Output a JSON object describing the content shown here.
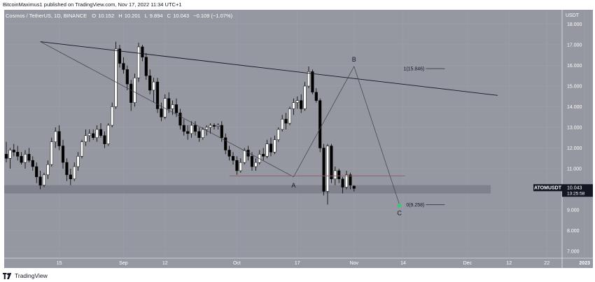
{
  "header": {
    "publish_line": "BitcoinMaximus1 published on TradingView.com, Nov 17, 2022 11:34 UTC+1"
  },
  "legend": {
    "symbol_line": "Cosmos / TetherUS, 1D, BINANCE",
    "o_label": "O",
    "o_value": "10.152",
    "h_label": "H",
    "h_value": "10.201",
    "l_label": "L",
    "l_value": "9.894",
    "c_label": "C",
    "c_value": "10.043",
    "change": "−0.109 (−1.07%)"
  },
  "footer": {
    "brand": "TradingView",
    "logo_icon": "tradingview-logo-icon"
  },
  "price_tag": {
    "symbol": "ATOMUSDT",
    "price": "10.043",
    "countdown": "13:25:58"
  },
  "colors": {
    "plot_bg": "#9598a1",
    "up_candle": "#ffffff",
    "down_candle": "#000000",
    "support_zone": "#7b7e88",
    "red_line": "#f23645",
    "green_dot": "#2ecc71"
  },
  "chart_data": {
    "type": "candlestick",
    "title": "Cosmos / TetherUS, 1D, BINANCE",
    "quote_unit": "USDT",
    "ylim": [
      6.8,
      18.4
    ],
    "y_ticks": [
      "18.000",
      "17.000",
      "16.000",
      "15.000",
      "14.000",
      "13.000",
      "12.000",
      "11.000",
      "9.000",
      "8.000",
      "7.000"
    ],
    "x_ticks": [
      "15",
      "Sep",
      "12",
      "Oct",
      "17",
      "Nov",
      "14",
      "Dec",
      "12",
      "22",
      "2023"
    ],
    "x_tick_days": [
      14,
      31,
      42,
      61,
      77,
      92,
      105,
      122,
      133,
      143,
      153
    ],
    "start_date": "Aug 2022",
    "candles": [
      {
        "o": 11.7,
        "h": 12.3,
        "l": 11.3,
        "c": 11.5
      },
      {
        "o": 11.5,
        "h": 12.0,
        "l": 11.0,
        "c": 11.9
      },
      {
        "o": 11.9,
        "h": 12.2,
        "l": 11.6,
        "c": 11.8
      },
      {
        "o": 11.8,
        "h": 12.1,
        "l": 11.4,
        "c": 11.6
      },
      {
        "o": 11.6,
        "h": 11.8,
        "l": 11.2,
        "c": 11.3
      },
      {
        "o": 11.3,
        "h": 11.9,
        "l": 11.0,
        "c": 11.7
      },
      {
        "o": 11.7,
        "h": 12.0,
        "l": 11.3,
        "c": 11.4
      },
      {
        "o": 11.4,
        "h": 11.6,
        "l": 10.9,
        "c": 11.1
      },
      {
        "o": 11.1,
        "h": 11.3,
        "l": 10.3,
        "c": 10.6
      },
      {
        "o": 10.6,
        "h": 10.9,
        "l": 10.0,
        "c": 10.2
      },
      {
        "o": 10.2,
        "h": 10.8,
        "l": 10.1,
        "c": 10.7
      },
      {
        "o": 10.7,
        "h": 11.4,
        "l": 10.5,
        "c": 11.2
      },
      {
        "o": 11.2,
        "h": 12.5,
        "l": 11.1,
        "c": 12.3
      },
      {
        "o": 12.3,
        "h": 13.0,
        "l": 12.0,
        "c": 12.8
      },
      {
        "o": 12.8,
        "h": 13.1,
        "l": 11.9,
        "c": 12.1
      },
      {
        "o": 12.1,
        "h": 12.4,
        "l": 11.0,
        "c": 11.3
      },
      {
        "o": 11.3,
        "h": 11.5,
        "l": 10.4,
        "c": 10.7
      },
      {
        "o": 10.7,
        "h": 11.0,
        "l": 10.2,
        "c": 10.5
      },
      {
        "o": 10.5,
        "h": 11.3,
        "l": 10.4,
        "c": 11.1
      },
      {
        "o": 11.1,
        "h": 11.8,
        "l": 10.9,
        "c": 11.6
      },
      {
        "o": 11.6,
        "h": 12.4,
        "l": 11.5,
        "c": 12.3
      },
      {
        "o": 12.3,
        "h": 12.9,
        "l": 12.1,
        "c": 12.6
      },
      {
        "o": 12.6,
        "h": 12.9,
        "l": 12.3,
        "c": 12.7
      },
      {
        "o": 12.7,
        "h": 12.9,
        "l": 12.4,
        "c": 12.5
      },
      {
        "o": 12.5,
        "h": 13.1,
        "l": 12.3,
        "c": 12.9
      },
      {
        "o": 12.9,
        "h": 13.2,
        "l": 12.5,
        "c": 12.6
      },
      {
        "o": 12.6,
        "h": 12.8,
        "l": 12.0,
        "c": 12.2
      },
      {
        "o": 12.2,
        "h": 13.2,
        "l": 12.1,
        "c": 13.1
      },
      {
        "o": 13.1,
        "h": 14.2,
        "l": 13.0,
        "c": 14.0
      },
      {
        "o": 14.0,
        "h": 17.15,
        "l": 13.9,
        "c": 16.8
      },
      {
        "o": 16.8,
        "h": 17.0,
        "l": 15.9,
        "c": 16.1
      },
      {
        "o": 16.1,
        "h": 16.4,
        "l": 15.6,
        "c": 15.8
      },
      {
        "o": 15.8,
        "h": 16.0,
        "l": 14.8,
        "c": 15.1
      },
      {
        "o": 15.1,
        "h": 15.3,
        "l": 13.8,
        "c": 14.2
      },
      {
        "o": 14.2,
        "h": 15.6,
        "l": 14.0,
        "c": 15.4
      },
      {
        "o": 15.4,
        "h": 17.1,
        "l": 15.2,
        "c": 16.9
      },
      {
        "o": 16.9,
        "h": 17.0,
        "l": 16.2,
        "c": 16.4
      },
      {
        "o": 16.4,
        "h": 16.6,
        "l": 15.3,
        "c": 15.5
      },
      {
        "o": 15.5,
        "h": 15.8,
        "l": 14.6,
        "c": 14.8
      },
      {
        "o": 14.8,
        "h": 15.4,
        "l": 14.2,
        "c": 15.2
      },
      {
        "o": 15.2,
        "h": 15.4,
        "l": 13.7,
        "c": 13.9
      },
      {
        "o": 13.9,
        "h": 14.2,
        "l": 13.3,
        "c": 13.5
      },
      {
        "o": 13.5,
        "h": 14.6,
        "l": 13.4,
        "c": 14.4
      },
      {
        "o": 14.4,
        "h": 14.7,
        "l": 13.7,
        "c": 13.9
      },
      {
        "o": 13.9,
        "h": 14.3,
        "l": 13.6,
        "c": 14.1
      },
      {
        "o": 14.1,
        "h": 14.4,
        "l": 13.5,
        "c": 13.7
      },
      {
        "o": 13.7,
        "h": 13.9,
        "l": 12.9,
        "c": 13.1
      },
      {
        "o": 13.1,
        "h": 13.4,
        "l": 12.6,
        "c": 12.8
      },
      {
        "o": 12.8,
        "h": 13.1,
        "l": 12.4,
        "c": 12.7
      },
      {
        "o": 12.7,
        "h": 13.3,
        "l": 12.5,
        "c": 13.1
      },
      {
        "o": 13.1,
        "h": 13.3,
        "l": 12.6,
        "c": 12.8
      },
      {
        "o": 12.8,
        "h": 13.0,
        "l": 12.3,
        "c": 12.5
      },
      {
        "o": 12.5,
        "h": 13.0,
        "l": 12.4,
        "c": 12.9
      },
      {
        "o": 12.9,
        "h": 13.1,
        "l": 12.6,
        "c": 13.0
      },
      {
        "o": 13.0,
        "h": 13.2,
        "l": 12.7,
        "c": 13.1
      },
      {
        "o": 13.1,
        "h": 13.2,
        "l": 12.9,
        "c": 13.05
      },
      {
        "o": 13.05,
        "h": 13.2,
        "l": 12.9,
        "c": 13.1
      },
      {
        "o": 13.1,
        "h": 13.3,
        "l": 12.3,
        "c": 12.5
      },
      {
        "o": 12.5,
        "h": 12.7,
        "l": 11.7,
        "c": 11.9
      },
      {
        "o": 11.9,
        "h": 12.1,
        "l": 11.4,
        "c": 11.6
      },
      {
        "o": 11.6,
        "h": 11.8,
        "l": 11.2,
        "c": 11.4
      },
      {
        "o": 11.4,
        "h": 11.6,
        "l": 10.7,
        "c": 10.9
      },
      {
        "o": 10.9,
        "h": 11.5,
        "l": 10.8,
        "c": 11.3
      },
      {
        "o": 11.3,
        "h": 12.0,
        "l": 11.2,
        "c": 11.9
      },
      {
        "o": 11.9,
        "h": 12.1,
        "l": 11.4,
        "c": 11.6
      },
      {
        "o": 11.6,
        "h": 11.8,
        "l": 10.9,
        "c": 11.1
      },
      {
        "o": 11.1,
        "h": 11.5,
        "l": 10.9,
        "c": 11.3
      },
      {
        "o": 11.3,
        "h": 11.9,
        "l": 11.2,
        "c": 11.7
      },
      {
        "o": 11.7,
        "h": 12.0,
        "l": 11.4,
        "c": 11.6
      },
      {
        "o": 11.6,
        "h": 12.4,
        "l": 11.5,
        "c": 12.2
      },
      {
        "o": 12.2,
        "h": 12.5,
        "l": 11.6,
        "c": 11.8
      },
      {
        "o": 11.8,
        "h": 12.6,
        "l": 11.7,
        "c": 12.4
      },
      {
        "o": 12.4,
        "h": 13.0,
        "l": 12.3,
        "c": 12.9
      },
      {
        "o": 12.9,
        "h": 13.6,
        "l": 12.8,
        "c": 13.4
      },
      {
        "o": 13.4,
        "h": 13.7,
        "l": 12.9,
        "c": 13.2
      },
      {
        "o": 13.2,
        "h": 14.0,
        "l": 13.1,
        "c": 13.9
      },
      {
        "o": 13.9,
        "h": 14.4,
        "l": 13.6,
        "c": 14.2
      },
      {
        "o": 14.2,
        "h": 14.5,
        "l": 13.9,
        "c": 14.3
      },
      {
        "o": 14.3,
        "h": 14.6,
        "l": 13.7,
        "c": 13.9
      },
      {
        "o": 13.9,
        "h": 15.2,
        "l": 13.8,
        "c": 15.0
      },
      {
        "o": 15.0,
        "h": 15.95,
        "l": 14.9,
        "c": 15.7
      },
      {
        "o": 15.7,
        "h": 15.8,
        "l": 14.6,
        "c": 14.7
      },
      {
        "o": 14.7,
        "h": 14.9,
        "l": 14.2,
        "c": 14.3
      },
      {
        "o": 14.3,
        "h": 14.4,
        "l": 11.8,
        "c": 12.0
      },
      {
        "o": 12.0,
        "h": 12.2,
        "l": 9.7,
        "c": 9.9
      },
      {
        "o": 9.9,
        "h": 12.2,
        "l": 9.26,
        "c": 12.1
      },
      {
        "o": 12.1,
        "h": 12.2,
        "l": 10.3,
        "c": 10.5
      },
      {
        "o": 10.5,
        "h": 11.1,
        "l": 10.2,
        "c": 10.9
      },
      {
        "o": 10.9,
        "h": 11.0,
        "l": 10.3,
        "c": 10.5
      },
      {
        "o": 10.5,
        "h": 10.6,
        "l": 9.8,
        "c": 10.1
      },
      {
        "o": 10.1,
        "h": 10.9,
        "l": 10.0,
        "c": 10.7
      },
      {
        "o": 10.7,
        "h": 10.8,
        "l": 10.0,
        "c": 10.2
      },
      {
        "o": 10.152,
        "h": 10.201,
        "l": 9.894,
        "c": 10.043
      }
    ],
    "support_zone": [
      9.8,
      10.2
    ],
    "resistance_line_level": 10.65,
    "current_price": 10.043,
    "trendline": {
      "from": {
        "day": 9,
        "price": 17.15
      },
      "to": {
        "day": 130,
        "price": 14.55
      }
    },
    "abc_path": [
      {
        "day": 9,
        "price": 17.15
      },
      {
        "day": 76,
        "price": 10.6
      },
      {
        "day": 92,
        "price": 15.95
      },
      {
        "day": 104,
        "price": 9.26
      }
    ],
    "wave_labels": [
      {
        "label": "A",
        "day": 76,
        "price": 10.6,
        "placement": "below"
      },
      {
        "label": "B",
        "day": 92,
        "price": 15.95,
        "placement": "above"
      },
      {
        "label": "C",
        "day": 104,
        "price": 9.26,
        "placement": "below"
      }
    ],
    "fib_levels": [
      {
        "label": "1(15.846)",
        "price": 15.846
      },
      {
        "label": "0(9.258)",
        "price": 9.258
      }
    ],
    "annotations": [
      "A",
      "B",
      "C",
      "1(15.846)",
      "0(9.258)"
    ]
  }
}
